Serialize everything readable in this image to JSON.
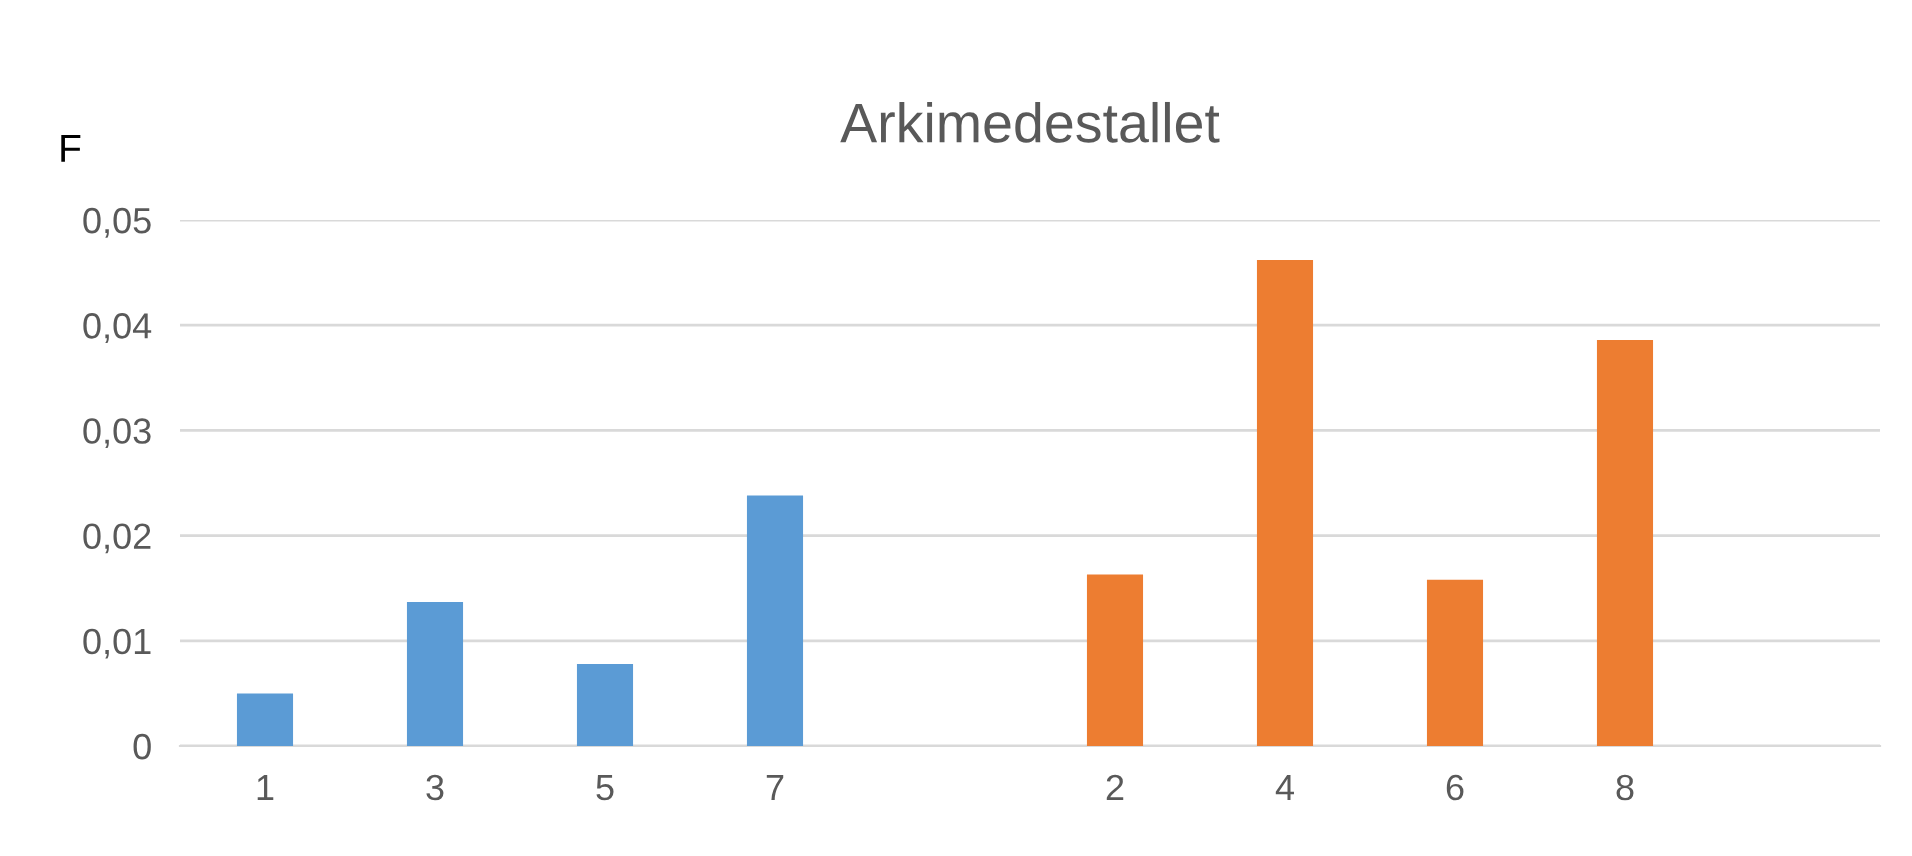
{
  "chart_data": {
    "type": "bar",
    "title": "Arkimedestallet",
    "ylabel": "F",
    "categories": [
      "1",
      "3",
      "5",
      "7",
      null,
      "2",
      "4",
      "6",
      "8",
      null
    ],
    "series": [
      {
        "color": "#5b9bd5",
        "values": [
          0.005,
          0.0137,
          0.0078,
          0.0238,
          null,
          null,
          null,
          null,
          null,
          null
        ]
      },
      {
        "color": "#ed7d31",
        "values": [
          null,
          null,
          null,
          null,
          null,
          0.0163,
          0.0462,
          0.0158,
          0.0386,
          null
        ]
      }
    ],
    "ylim": [
      0,
      0.05
    ],
    "yticks": [
      {
        "value": 0,
        "label": "0"
      },
      {
        "value": 0.01,
        "label": "0,01"
      },
      {
        "value": 0.02,
        "label": "0,02"
      },
      {
        "value": 0.03,
        "label": "0,03"
      },
      {
        "value": 0.04,
        "label": "0,04"
      },
      {
        "value": 0.05,
        "label": "0,05"
      }
    ],
    "grid": "y"
  }
}
